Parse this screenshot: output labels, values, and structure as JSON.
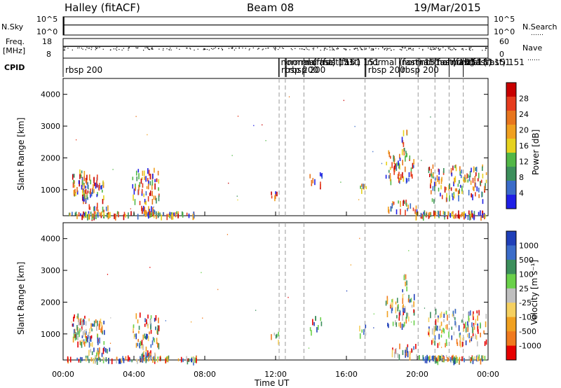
{
  "header": {
    "station": "Halley (fitACF)",
    "beam": "Beam 08",
    "date": "19/Mar/2015"
  },
  "colors": {
    "power_scale": [
      "#1f1fe6",
      "#3b6cc9",
      "#3c8f5c",
      "#52b747",
      "#e6d21f",
      "#f0a020",
      "#e8761e",
      "#e63c1e",
      "#c80000"
    ],
    "velocity_scale": [
      "#e60000",
      "#f07a1e",
      "#f0a020",
      "#f5d060",
      "#bfbfbf",
      "#6ad14a",
      "#3c8f5c",
      "#3b6cc9",
      "#1f3fb8"
    ]
  },
  "chart_data": [
    {
      "type": "line",
      "name": "sky-noise-search",
      "left_labels": [
        "N.Sky"
      ],
      "right_labels": [
        "N.Search"
      ],
      "left_ticks": [
        "10^5",
        "10^0"
      ],
      "right_ticks": [
        "10^5",
        "10^0"
      ],
      "level_fraction": 0.55
    },
    {
      "type": "scatter",
      "name": "freq-nave",
      "left_labels": [
        "Freq.",
        "[MHz]"
      ],
      "right_labels": [
        "Nave"
      ],
      "left_ticks": [
        "18",
        "8"
      ],
      "right_ticks": [
        "60",
        "0"
      ],
      "level_fraction": 0.6
    },
    {
      "type": "table",
      "name": "cpid",
      "label": "CPID",
      "x_range_hours": [
        0,
        24
      ],
      "segments": [
        {
          "t": 0.0,
          "text": "rbsp 200",
          "row": 1
        },
        {
          "t": 12.18,
          "text": "normal (fast) 151",
          "row": 0
        },
        {
          "t": 12.2,
          "text": "rbsp 200",
          "row": 1
        },
        {
          "t": 12.55,
          "text": "normal (fast) 151",
          "row": 0
        },
        {
          "t": 12.6,
          "text": "rbsp 200",
          "row": 1
        },
        {
          "t": 13.6,
          "text": "normal (fast) 151",
          "row": 0
        },
        {
          "t": 17.05,
          "text": "normal (fast) 151",
          "row": 0
        },
        {
          "t": 17.1,
          "text": "rbsp 200",
          "row": 1
        },
        {
          "t": 19.0,
          "text": "normal (fast) 151",
          "row": 0
        },
        {
          "t": 19.0,
          "text": "rbsp 200",
          "row": 1
        },
        {
          "t": 20.05,
          "text": "normal (fast) 151",
          "row": 0
        },
        {
          "t": 21.0,
          "text": "normal (fast) 151",
          "row": 0
        },
        {
          "t": 21.8,
          "text": "normal (fast) 151",
          "row": 0
        },
        {
          "t": 22.6,
          "text": "151",
          "row": 0
        }
      ]
    },
    {
      "type": "heatmap",
      "name": "power",
      "xlabel": "",
      "ylabel": "Slant Range [km]",
      "x_range_hours": [
        0,
        24
      ],
      "ylim": [
        180,
        4500
      ],
      "y_ticks": [
        1000,
        2000,
        3000,
        4000
      ],
      "colorbar_label": "Power [dB]",
      "colorbar_ticks": [
        "28",
        "24",
        "20",
        "16",
        "12",
        "8",
        "4"
      ],
      "dashed_times": [
        12.2,
        12.55,
        13.6,
        17.05,
        20.05,
        21.0,
        21.8,
        22.6
      ]
    },
    {
      "type": "heatmap",
      "name": "velocity",
      "xlabel": "Time UT",
      "ylabel": "Slant Range [km]",
      "x_range_hours": [
        0,
        24
      ],
      "ylim": [
        180,
        4500
      ],
      "y_ticks": [
        1000,
        2000,
        3000,
        4000
      ],
      "x_ticks": [
        "00:00",
        "04:00",
        "08:00",
        "12:00",
        "16:00",
        "20:00",
        "00:00"
      ],
      "colorbar_label": "Velocity [m s^-1]",
      "colorbar_ticks": [
        "1000",
        "500",
        "100",
        "25",
        "-25",
        "-100",
        "-500",
        "-1000"
      ],
      "dashed_times": [
        12.2,
        12.55,
        13.6,
        17.05,
        20.05,
        21.0,
        21.8,
        22.6
      ]
    }
  ]
}
